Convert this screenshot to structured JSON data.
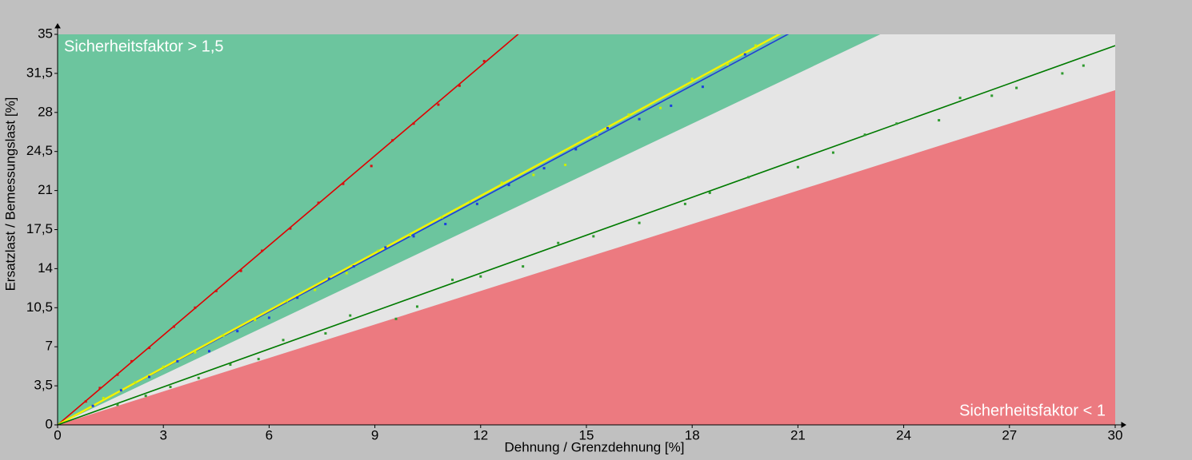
{
  "chart_data": {
    "type": "scatter",
    "x_label": "Dehnung / Grenzdehnung [%]",
    "y_label": "Ersatzlast / Bemessungslast [%]",
    "annotations": [
      "Sicherheitsfaktor > 1,5",
      "Sicherheitsfaktor < 1"
    ],
    "xlim": [
      0,
      30
    ],
    "ylim": [
      0,
      35
    ],
    "xticks": [
      0,
      3,
      6,
      9,
      12,
      15,
      18,
      21,
      24,
      27,
      30
    ],
    "yticks": [
      0,
      {
        "value": 3.5,
        "label": "3,5"
      },
      7,
      {
        "value": 10.5,
        "label": "10,5"
      },
      14,
      {
        "value": 17.5,
        "label": "17,5"
      },
      21,
      {
        "value": 24.5,
        "label": "24,5"
      },
      28,
      {
        "value": 31.5,
        "label": "31,5"
      },
      35
    ],
    "boundary_slopes": [
      1,
      1.5
    ],
    "region_colors": [
      "#ec7a80",
      "#e5e5e5",
      "#6cc59e"
    ],
    "fits": [
      {
        "color": "#e00000",
        "slope": 2.68
      },
      {
        "color": "#1f3fd6",
        "slope": 1.69
      },
      {
        "color": "#f2f200",
        "slope": 1.71
      },
      {
        "color": "#007a00",
        "slope": 1.133
      }
    ],
    "series": [
      {
        "color": "#d81010",
        "x": [
          0.8,
          1.2,
          1.7,
          2.1,
          2.6,
          3.3,
          3.9,
          4.5,
          5.2,
          5.8,
          6.6,
          7.4,
          8.1,
          8.9,
          9.5,
          10.1,
          10.8,
          11.4,
          12.1
        ],
        "y": [
          2.1,
          3.3,
          4.5,
          5.7,
          6.9,
          8.8,
          10.5,
          12.0,
          13.8,
          15.6,
          17.6,
          19.9,
          21.6,
          23.2,
          25.5,
          27.0,
          28.7,
          30.4,
          32.6
        ]
      },
      {
        "color": "#1a3fe0",
        "x": [
          1.0,
          1.8,
          2.6,
          3.4,
          4.3,
          5.1,
          6.0,
          6.8,
          7.7,
          8.4,
          9.3,
          10.1,
          11.0,
          11.9,
          12.8,
          13.8,
          14.7,
          15.6,
          16.5,
          17.4,
          18.3,
          19.5
        ],
        "y": [
          1.7,
          3.1,
          4.3,
          5.7,
          6.6,
          8.4,
          9.6,
          11.4,
          13.1,
          14.2,
          15.9,
          16.9,
          18.0,
          19.8,
          21.5,
          23.0,
          24.7,
          26.6,
          27.4,
          28.6,
          30.3,
          33.2
        ]
      },
      {
        "color": "#c8f000",
        "x": [
          1.3,
          2.2,
          3.0,
          3.9,
          4.7,
          5.6,
          6.5,
          7.3,
          8.2,
          9.1,
          10.0,
          10.9,
          11.7,
          12.6,
          13.5,
          14.4,
          15.3,
          16.2,
          17.1,
          18.0,
          19.0,
          19.8
        ],
        "y": [
          2.4,
          3.8,
          5.2,
          6.5,
          8.0,
          9.4,
          11.1,
          12.1,
          13.6,
          15.6,
          17.0,
          18.6,
          20.0,
          21.7,
          22.4,
          23.3,
          26.0,
          27.8,
          28.4,
          31.0,
          32.3,
          34.0
        ]
      },
      {
        "color": "#2e9a2e",
        "x": [
          1.7,
          2.5,
          3.2,
          4.0,
          4.9,
          5.7,
          6.4,
          7.6,
          8.3,
          9.6,
          10.2,
          11.2,
          12.0,
          13.2,
          14.2,
          15.2,
          16.5,
          17.8,
          18.5,
          19.6,
          21.0,
          22.0,
          22.9,
          23.8,
          25.0,
          25.6,
          26.5,
          27.2,
          28.5,
          29.1
        ],
        "y": [
          1.8,
          2.6,
          3.4,
          4.2,
          5.4,
          5.9,
          7.6,
          8.2,
          9.8,
          9.5,
          10.6,
          13.0,
          13.3,
          14.2,
          16.3,
          16.9,
          18.1,
          19.8,
          20.8,
          22.2,
          23.1,
          24.4,
          26.0,
          27.0,
          27.3,
          29.3,
          29.5,
          30.2,
          31.5,
          32.2
        ]
      }
    ]
  }
}
